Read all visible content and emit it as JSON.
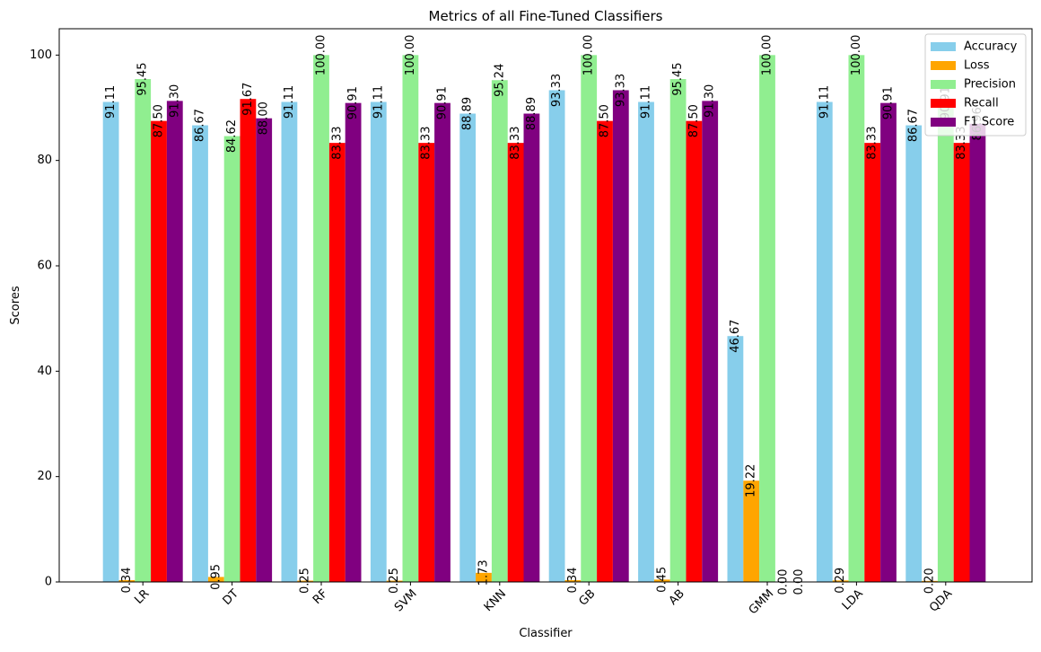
{
  "chart_data": {
    "type": "bar",
    "title": "Metrics of all Fine-Tuned Classifiers",
    "xlabel": "Classifier",
    "ylabel": "Scores",
    "ylim": [
      0,
      105
    ],
    "yticks": [
      0,
      20,
      40,
      60,
      80,
      100
    ],
    "grid": false,
    "legend_position": "top-right",
    "categories": [
      "LR",
      "DT",
      "RF",
      "SVM",
      "KNN",
      "GB",
      "AB",
      "GMM",
      "LDA",
      "QDA"
    ],
    "series": [
      {
        "name": "Accuracy",
        "color": "#87ceeb",
        "values": [
          91.11,
          86.67,
          91.11,
          91.11,
          88.89,
          93.33,
          91.11,
          46.67,
          91.11,
          86.67
        ],
        "labels": [
          "91.11",
          "86.67",
          "91.11",
          "91.11",
          "88.89",
          "93.33",
          "91.11",
          "46.67",
          "91.11",
          "86.67"
        ]
      },
      {
        "name": "Loss",
        "color": "#ffa500",
        "values": [
          0.34,
          0.95,
          0.25,
          0.25,
          1.73,
          0.34,
          0.45,
          19.22,
          0.29,
          0.2
        ],
        "labels": [
          "0.34",
          "0.95",
          "0.25",
          "0.25",
          "1.73",
          "0.34",
          "0.45",
          "19.22",
          "0.29",
          "0.20"
        ]
      },
      {
        "name": "Precision",
        "color": "#90ee90",
        "values": [
          95.45,
          84.62,
          100.0,
          100.0,
          95.24,
          100.0,
          95.45,
          100.0,
          100.0,
          90.91
        ],
        "labels": [
          "95.45",
          "84.62",
          "100.00",
          "100.00",
          "95.24",
          "100.00",
          "95.45",
          "100.00",
          "100.00",
          "90.91"
        ]
      },
      {
        "name": "Recall",
        "color": "#ff0000",
        "values": [
          87.5,
          91.67,
          83.33,
          83.33,
          83.33,
          87.5,
          87.5,
          0.0,
          83.33,
          83.33
        ],
        "labels": [
          "87.50",
          "91.67",
          "83.33",
          "83.33",
          "83.33",
          "87.50",
          "87.50",
          "0.00",
          "83.33",
          "83.33"
        ]
      },
      {
        "name": "F1 Score",
        "color": "#800080",
        "values": [
          91.3,
          88.0,
          90.91,
          90.91,
          88.89,
          93.33,
          91.3,
          0.0,
          90.91,
          86.96
        ],
        "labels": [
          "91.30",
          "88.00",
          "90.91",
          "90.91",
          "88.89",
          "93.33",
          "91.30",
          "0.00",
          "90.91",
          "86.96"
        ]
      }
    ]
  }
}
